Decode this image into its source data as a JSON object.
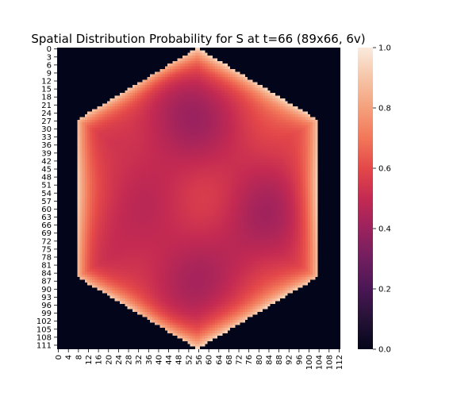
{
  "chart_data": {
    "type": "heatmap",
    "title": "Spatial Distribution Probability for S at t=66 (89x66, 6v)",
    "xlabel": "",
    "ylabel": "",
    "grid_size": {
      "rows": 113,
      "cols": 113
    },
    "x_ticks": [
      "0",
      "4",
      "8",
      "12",
      "16",
      "20",
      "24",
      "28",
      "32",
      "36",
      "40",
      "44",
      "48",
      "52",
      "56",
      "60",
      "64",
      "68",
      "72",
      "76",
      "80",
      "84",
      "88",
      "92",
      "96",
      "100",
      "104",
      "108",
      "112"
    ],
    "y_ticks": [
      "0",
      "3",
      "6",
      "9",
      "12",
      "15",
      "18",
      "21",
      "24",
      "27",
      "30",
      "33",
      "36",
      "39",
      "42",
      "45",
      "48",
      "51",
      "54",
      "57",
      "60",
      "63",
      "66",
      "69",
      "72",
      "75",
      "78",
      "81",
      "84",
      "87",
      "90",
      "93",
      "96",
      "99",
      "102",
      "105",
      "108",
      "111"
    ],
    "value_range": [
      0.0,
      1.0
    ],
    "colormap": "rocket",
    "colorbar": {
      "ticks": [
        "0.0",
        "0.2",
        "0.4",
        "0.6",
        "0.8",
        "1.0"
      ],
      "placement": "right"
    },
    "region": {
      "shape": "hexagon",
      "vertices": [
        [
          56,
          0
        ],
        [
          104,
          27
        ],
        [
          104,
          86
        ],
        [
          56,
          113
        ],
        [
          8,
          86
        ],
        [
          8,
          27
        ]
      ],
      "outside_value": 0.0
    },
    "approx_values": {
      "interior_mean": 0.55,
      "edge_max": 0.95,
      "low_spots": [
        {
          "x": 48,
          "y": 24,
          "value": 0.42
        },
        {
          "x": 84,
          "y": 66,
          "value": 0.45
        },
        {
          "x": 48,
          "y": 91,
          "value": 0.45
        },
        {
          "x": 20,
          "y": 66,
          "value": 0.5
        }
      ]
    }
  }
}
